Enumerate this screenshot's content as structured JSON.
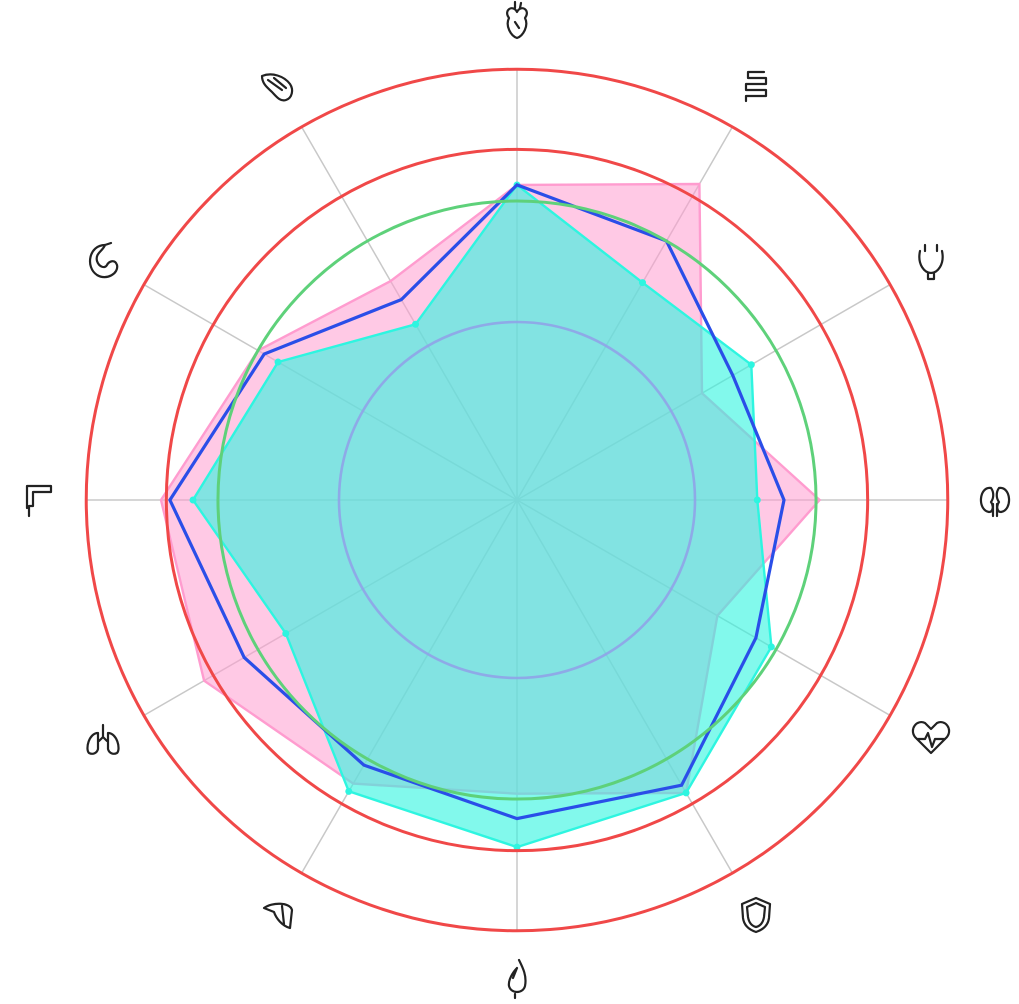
{
  "chart_data": {
    "type": "radar",
    "axes": [
      {
        "icon": "heart-organ-icon"
      },
      {
        "icon": "intestines-icon"
      },
      {
        "icon": "bladder-icon"
      },
      {
        "icon": "kidneys-icon"
      },
      {
        "icon": "heart-rate-icon"
      },
      {
        "icon": "shield-icon"
      },
      {
        "icon": "gallbladder-icon"
      },
      {
        "icon": "liver-icon"
      },
      {
        "icon": "lungs-icon"
      },
      {
        "icon": "colon-icon"
      },
      {
        "icon": "stomach-icon"
      },
      {
        "icon": "pancreas-icon"
      }
    ],
    "rlim": [
      0,
      2.4
    ],
    "grid": true,
    "reference_rings": [
      {
        "value": 1.0,
        "color": "#8fa3e8"
      },
      {
        "value": 1.68,
        "color": "#5ed17a"
      },
      {
        "value": 1.97,
        "color": "#f04848"
      },
      {
        "value": 2.42,
        "color": "#f04848"
      }
    ],
    "series": [
      {
        "color": "#ff9ccf",
        "fill_opacity": 0.55,
        "values": [
          1.77,
          2.05,
          1.2,
          1.7,
          1.3,
          1.9,
          1.65,
          1.84,
          2.03,
          2.0,
          1.68,
          1.42
        ],
        "markers": false
      },
      {
        "color": "#2ef5e0",
        "fill_opacity": 0.6,
        "values": [
          1.77,
          1.41,
          1.52,
          1.35,
          1.65,
          1.9,
          1.95,
          1.89,
          1.5,
          1.82,
          1.55,
          1.14
        ],
        "markers": true
      },
      {
        "color": "#2a4ee8",
        "fill_opacity": 0,
        "values": [
          1.77,
          1.68,
          1.4,
          1.5,
          1.55,
          1.85,
          1.79,
          1.72,
          1.77,
          1.95,
          1.64,
          1.3
        ],
        "markers": false
      }
    ]
  }
}
